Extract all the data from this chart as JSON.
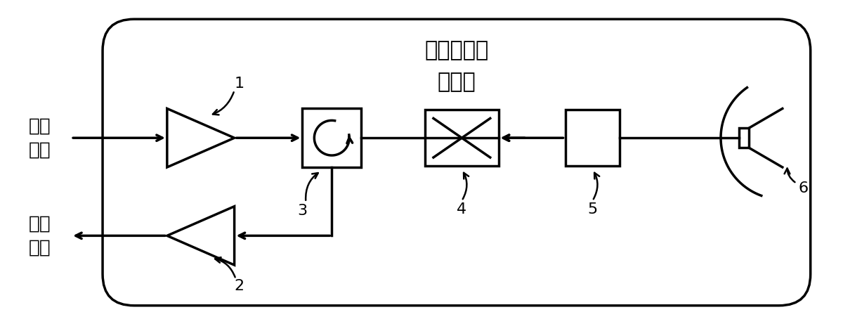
{
  "title_line1": "星载同步收",
  "title_line2": "发装置",
  "label_tx1": "发射",
  "label_tx2": "信号",
  "label_rx1": "接收",
  "label_rx2": "信号",
  "num_labels": [
    "1",
    "2",
    "3",
    "4",
    "5",
    "6"
  ],
  "bg_color": "#ffffff",
  "line_color": "#000000",
  "line_width": 2.5,
  "fig_width": 12.0,
  "fig_height": 4.61
}
